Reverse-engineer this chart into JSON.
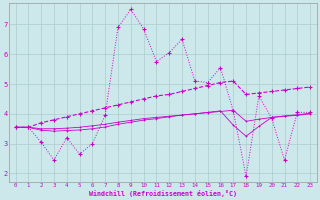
{
  "xlabel": "Windchill (Refroidissement éolien,°C)",
  "background_color": "#cce8ea",
  "grid_color": "#aacccc",
  "line_color": "#cc00cc",
  "xlim": [
    -0.5,
    23.5
  ],
  "ylim": [
    1.7,
    7.7
  ],
  "xticks": [
    0,
    1,
    2,
    3,
    4,
    5,
    6,
    7,
    8,
    9,
    10,
    11,
    12,
    13,
    14,
    15,
    16,
    17,
    18,
    19,
    20,
    21,
    22,
    23
  ],
  "yticks": [
    2,
    3,
    4,
    5,
    6,
    7
  ],
  "s1_x": [
    0,
    1,
    2,
    3,
    4,
    5,
    6,
    7,
    8,
    9,
    10,
    11,
    12,
    13,
    14,
    15,
    16,
    17,
    18,
    19,
    20,
    21,
    22,
    23
  ],
  "s1_y": [
    3.55,
    3.55,
    3.05,
    2.45,
    3.2,
    2.65,
    3.0,
    3.95,
    6.9,
    7.5,
    6.85,
    5.75,
    6.05,
    6.5,
    5.1,
    5.05,
    5.55,
    4.1,
    1.9,
    4.6,
    3.85,
    2.45,
    4.05,
    4.05
  ],
  "s2_x": [
    0,
    1,
    2,
    3,
    4,
    5,
    6,
    7,
    8,
    9,
    10,
    11,
    12,
    13,
    14,
    15,
    16,
    17,
    18,
    19,
    20,
    21,
    22,
    23
  ],
  "s2_y": [
    3.55,
    3.55,
    3.7,
    3.8,
    3.9,
    4.0,
    4.1,
    4.2,
    4.3,
    4.4,
    4.5,
    4.6,
    4.65,
    4.75,
    4.85,
    4.95,
    5.05,
    5.1,
    4.65,
    4.7,
    4.75,
    4.8,
    4.85,
    4.9
  ],
  "s3_x": [
    0,
    1,
    2,
    3,
    4,
    5,
    6,
    7,
    8,
    9,
    10,
    11,
    12,
    13,
    14,
    15,
    16,
    17,
    18,
    19,
    20,
    21,
    22,
    23
  ],
  "s3_y": [
    3.55,
    3.55,
    3.5,
    3.5,
    3.52,
    3.55,
    3.6,
    3.65,
    3.72,
    3.78,
    3.84,
    3.88,
    3.92,
    3.96,
    4.0,
    4.04,
    4.08,
    4.12,
    3.75,
    3.82,
    3.88,
    3.92,
    3.95,
    4.0
  ],
  "s4_x": [
    0,
    1,
    2,
    3,
    4,
    5,
    6,
    7,
    8,
    9,
    10,
    11,
    12,
    13,
    14,
    15,
    16,
    17,
    18,
    19,
    20,
    21,
    22,
    23
  ],
  "s4_y": [
    3.55,
    3.55,
    3.45,
    3.42,
    3.44,
    3.46,
    3.5,
    3.56,
    3.65,
    3.72,
    3.79,
    3.84,
    3.9,
    3.96,
    4.0,
    4.05,
    4.1,
    3.62,
    3.25,
    3.58,
    3.88,
    3.93,
    3.97,
    4.02
  ]
}
